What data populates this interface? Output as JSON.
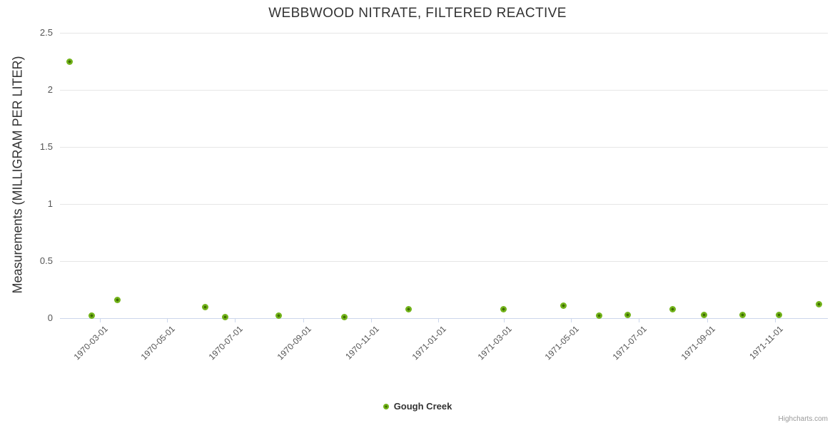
{
  "title": "WEBBWOOD NITRATE, FILTERED REACTIVE",
  "y_axis": {
    "title": "Measurements (MILLIGRAM PER LITER)",
    "labels": [
      "0",
      "0.5",
      "1",
      "1.5",
      "2",
      "2.5"
    ]
  },
  "x_axis": {
    "labels": [
      "1970-03-01",
      "1970-05-01",
      "1970-07-01",
      "1970-09-01",
      "1970-11-01",
      "1971-01-01",
      "1971-03-01",
      "1971-05-01",
      "1971-07-01",
      "1971-09-01",
      "1971-11-01"
    ]
  },
  "legend": {
    "label": "Gough Creek"
  },
  "credits": "Highcharts.com",
  "colors": {
    "marker_outer": "#72b31a",
    "marker_inner": "#3f6d00",
    "grid": "#e6e6e6",
    "axis": "#ccd6eb",
    "title_text": "#333333",
    "tick_text": "#555555",
    "credits_text": "#999999"
  },
  "chart_data": {
    "type": "scatter",
    "title": "WEBBWOOD NITRATE, FILTERED REACTIVE",
    "xlabel": "",
    "ylabel": "Measurements (MILLIGRAM PER LITER)",
    "x_type": "datetime",
    "xlim": [
      "1970-01-24",
      "1971-12-19"
    ],
    "ylim": [
      0,
      2.5
    ],
    "y_ticks": [
      0,
      0.5,
      1,
      1.5,
      2,
      2.5
    ],
    "x_ticks": [
      "1970-03-01",
      "1970-05-01",
      "1970-07-01",
      "1970-09-01",
      "1970-11-01",
      "1971-01-01",
      "1971-03-01",
      "1971-05-01",
      "1971-07-01",
      "1971-09-01",
      "1971-11-01"
    ],
    "grid": "horizontal-only",
    "legend_position": "bottom-center",
    "series": [
      {
        "name": "Gough Creek",
        "color": "#72b31a",
        "data": [
          [
            "1970-02-02",
            2.25
          ],
          [
            "1970-02-22",
            0.02
          ],
          [
            "1970-03-17",
            0.16
          ],
          [
            "1970-06-04",
            0.1
          ],
          [
            "1970-06-22",
            0.01
          ],
          [
            "1970-08-10",
            0.02
          ],
          [
            "1970-10-08",
            0.01
          ],
          [
            "1970-12-05",
            0.08
          ],
          [
            "1971-03-01",
            0.08
          ],
          [
            "1971-04-24",
            0.11
          ],
          [
            "1971-05-26",
            0.02
          ],
          [
            "1971-06-21",
            0.03
          ],
          [
            "1971-08-01",
            0.08
          ],
          [
            "1971-08-29",
            0.03
          ],
          [
            "1971-10-03",
            0.03
          ],
          [
            "1971-11-05",
            0.03
          ],
          [
            "1971-12-11",
            0.12
          ]
        ]
      }
    ]
  }
}
